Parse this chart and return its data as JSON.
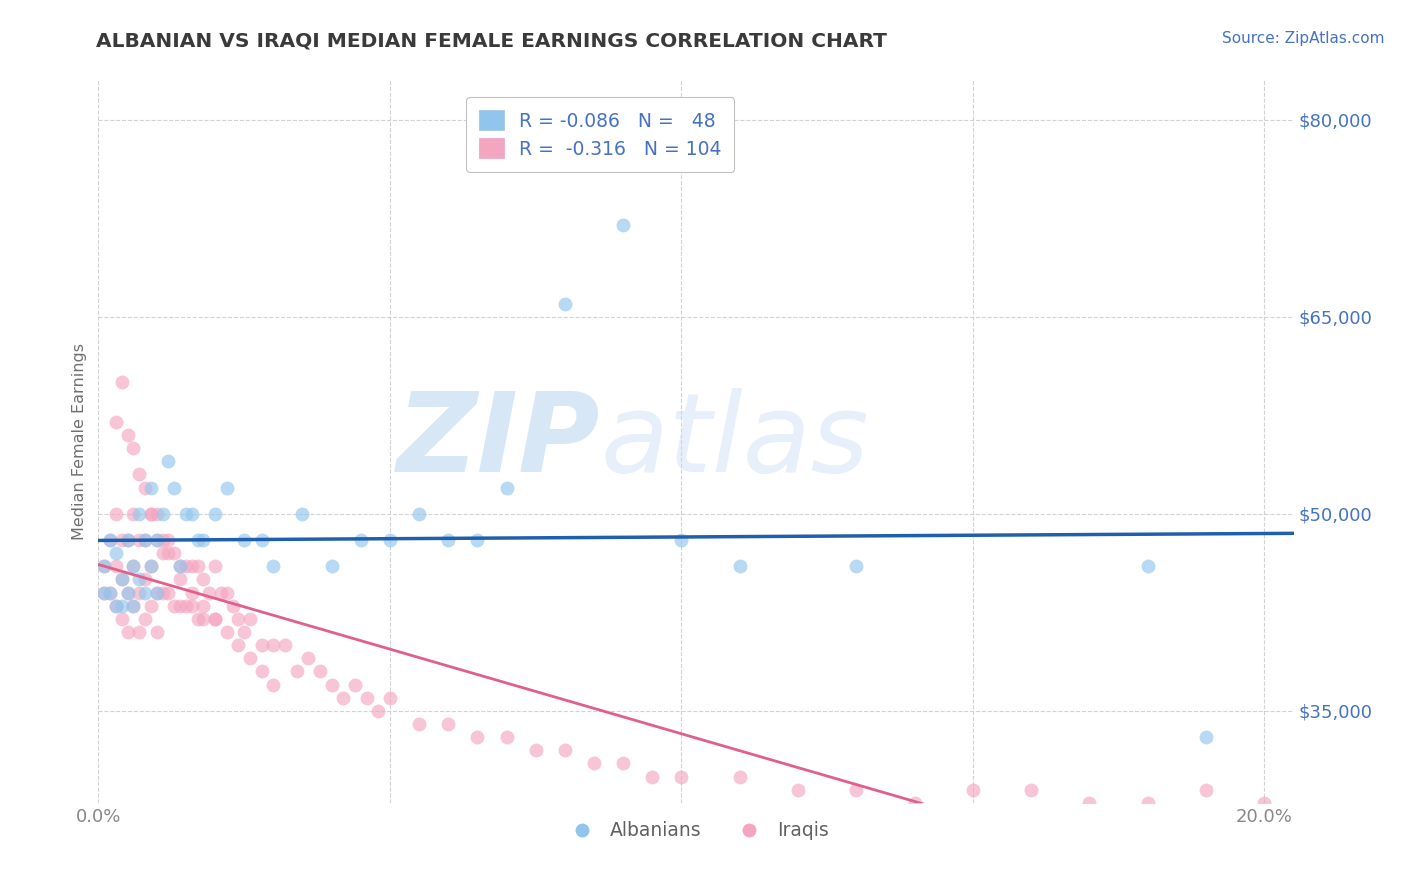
{
  "title": "ALBANIAN VS IRAQI MEDIAN FEMALE EARNINGS CORRELATION CHART",
  "source": "Source: ZipAtlas.com",
  "ylabel": "Median Female Earnings",
  "xlim": [
    0.0,
    0.205
  ],
  "ylim": [
    28000,
    83000
  ],
  "yticks": [
    35000,
    50000,
    65000,
    80000
  ],
  "ytick_labels": [
    "$35,000",
    "$50,000",
    "$65,000",
    "$80,000"
  ],
  "xticks": [
    0.0,
    0.05,
    0.1,
    0.15,
    0.2
  ],
  "xtick_labels": [
    "0.0%",
    "",
    "",
    "",
    "20.0%"
  ],
  "watermark_zip": "ZIP",
  "watermark_atlas": "atlas",
  "albanian_color": "#92C5ED",
  "iraqi_color": "#F4A6C0",
  "albanian_line_color": "#1F5FAD",
  "iraqi_line_color": "#E0608A",
  "background_color": "#FFFFFF",
  "grid_color": "#C8C8C8",
  "title_color": "#3A3A3A",
  "axis_label_color": "#707070",
  "ytick_color": "#4472C4",
  "legend_text_color": "#4472C4",
  "albanian_scatter_x": [
    0.001,
    0.001,
    0.002,
    0.002,
    0.003,
    0.003,
    0.004,
    0.004,
    0.005,
    0.005,
    0.006,
    0.006,
    0.007,
    0.007,
    0.008,
    0.008,
    0.009,
    0.009,
    0.01,
    0.01,
    0.011,
    0.012,
    0.013,
    0.014,
    0.015,
    0.016,
    0.017,
    0.018,
    0.02,
    0.022,
    0.025,
    0.028,
    0.03,
    0.035,
    0.04,
    0.045,
    0.05,
    0.055,
    0.06,
    0.065,
    0.07,
    0.08,
    0.09,
    0.1,
    0.11,
    0.13,
    0.18,
    0.19
  ],
  "albanian_scatter_y": [
    46000,
    44000,
    48000,
    44000,
    47000,
    43000,
    45000,
    43000,
    48000,
    44000,
    46000,
    43000,
    50000,
    45000,
    48000,
    44000,
    52000,
    46000,
    48000,
    44000,
    50000,
    54000,
    52000,
    46000,
    50000,
    50000,
    48000,
    48000,
    50000,
    52000,
    48000,
    48000,
    46000,
    50000,
    46000,
    48000,
    48000,
    50000,
    48000,
    48000,
    52000,
    66000,
    72000,
    48000,
    46000,
    46000,
    46000,
    33000
  ],
  "iraqi_scatter_x": [
    0.001,
    0.001,
    0.002,
    0.002,
    0.003,
    0.003,
    0.003,
    0.004,
    0.004,
    0.004,
    0.005,
    0.005,
    0.005,
    0.006,
    0.006,
    0.006,
    0.007,
    0.007,
    0.007,
    0.008,
    0.008,
    0.008,
    0.009,
    0.009,
    0.009,
    0.01,
    0.01,
    0.01,
    0.011,
    0.011,
    0.012,
    0.012,
    0.013,
    0.013,
    0.014,
    0.014,
    0.015,
    0.015,
    0.016,
    0.016,
    0.017,
    0.017,
    0.018,
    0.018,
    0.019,
    0.02,
    0.02,
    0.021,
    0.022,
    0.023,
    0.024,
    0.025,
    0.026,
    0.028,
    0.03,
    0.032,
    0.034,
    0.036,
    0.038,
    0.04,
    0.042,
    0.044,
    0.046,
    0.048,
    0.05,
    0.055,
    0.06,
    0.065,
    0.07,
    0.075,
    0.08,
    0.085,
    0.09,
    0.095,
    0.1,
    0.11,
    0.12,
    0.13,
    0.14,
    0.15,
    0.16,
    0.17,
    0.18,
    0.19,
    0.2,
    0.003,
    0.004,
    0.005,
    0.006,
    0.007,
    0.008,
    0.009,
    0.01,
    0.011,
    0.012,
    0.014,
    0.016,
    0.018,
    0.02,
    0.022,
    0.024,
    0.026,
    0.028,
    0.03
  ],
  "iraqi_scatter_y": [
    46000,
    44000,
    48000,
    44000,
    50000,
    46000,
    43000,
    48000,
    45000,
    42000,
    48000,
    44000,
    41000,
    50000,
    46000,
    43000,
    48000,
    44000,
    41000,
    48000,
    45000,
    42000,
    50000,
    46000,
    43000,
    48000,
    44000,
    41000,
    47000,
    44000,
    48000,
    44000,
    47000,
    43000,
    46000,
    43000,
    46000,
    43000,
    46000,
    43000,
    46000,
    42000,
    45000,
    42000,
    44000,
    46000,
    42000,
    44000,
    44000,
    43000,
    42000,
    41000,
    42000,
    40000,
    40000,
    40000,
    38000,
    39000,
    38000,
    37000,
    36000,
    37000,
    36000,
    35000,
    36000,
    34000,
    34000,
    33000,
    33000,
    32000,
    32000,
    31000,
    31000,
    30000,
    30000,
    30000,
    29000,
    29000,
    28000,
    29000,
    29000,
    28000,
    28000,
    29000,
    28000,
    57000,
    60000,
    56000,
    55000,
    53000,
    52000,
    50000,
    50000,
    48000,
    47000,
    45000,
    44000,
    43000,
    42000,
    41000,
    40000,
    39000,
    38000,
    37000
  ]
}
